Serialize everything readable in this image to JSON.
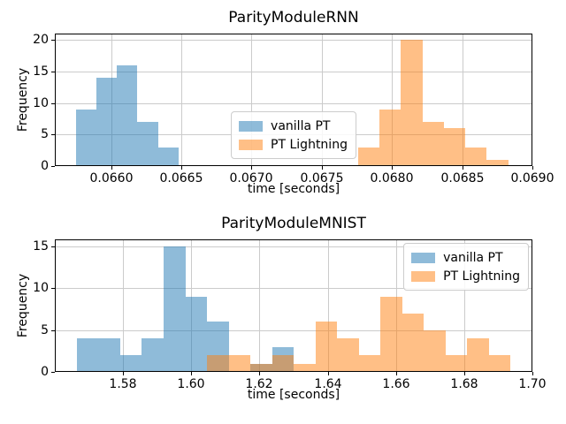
{
  "figure": {
    "background": "#ffffff",
    "grid_color": "#cbcbcb",
    "series_colors": {
      "vanilla_pt": "rgba(31,119,180,0.5)",
      "pt_lightning": "rgba(255,127,14,0.5)"
    }
  },
  "chart_data": [
    {
      "type": "histogram",
      "title": "ParityModuleRNN",
      "xlabel": "time [seconds]",
      "ylabel": "Frequency",
      "xlim": [
        0.0656,
        0.069
      ],
      "ylim": [
        0,
        21
      ],
      "grid": true,
      "xticks": [
        0.066,
        0.0665,
        0.067,
        0.0675,
        0.068,
        0.0685,
        0.069
      ],
      "xtick_labels": [
        "0.0660",
        "0.0665",
        "0.0670",
        "0.0675",
        "0.0680",
        "0.0685",
        "0.0690"
      ],
      "yticks": [
        0,
        5,
        10,
        15,
        20
      ],
      "legend_loc": "lower center",
      "series": [
        {
          "name": "vanilla PT",
          "color": "rgba(31,119,180,0.5)",
          "bin_start": 0.06575,
          "bin_width": 0.000146,
          "counts": [
            9,
            14,
            16,
            7,
            3
          ]
        },
        {
          "name": "PT Lightning",
          "color": "rgba(255,127,14,0.5)",
          "bin_start": 0.06776,
          "bin_width": 0.0001525,
          "counts": [
            3,
            9,
            20,
            7,
            6,
            3,
            1
          ]
        }
      ]
    },
    {
      "type": "histogram",
      "title": "ParityModuleMNIST",
      "xlabel": "time [seconds]",
      "ylabel": "Frequency",
      "xlim": [
        1.56,
        1.7
      ],
      "ylim": [
        0,
        15.8
      ],
      "grid": true,
      "xticks": [
        1.58,
        1.6,
        1.62,
        1.64,
        1.66,
        1.68,
        1.7
      ],
      "xtick_labels": [
        "1.58",
        "1.60",
        "1.62",
        "1.64",
        "1.66",
        "1.68",
        "1.70"
      ],
      "yticks": [
        0,
        5,
        10,
        15
      ],
      "legend_loc": "upper right",
      "series": [
        {
          "name": "vanilla PT",
          "color": "rgba(31,119,180,0.5)",
          "bin_start": 1.5664,
          "bin_width": 0.00637,
          "counts": [
            4,
            4,
            2,
            4,
            15,
            9,
            6,
            0,
            1,
            3
          ]
        },
        {
          "name": "PT Lightning",
          "color": "rgba(255,127,14,0.5)",
          "bin_start": 1.6046,
          "bin_width": 0.00636,
          "counts": [
            2,
            2,
            1,
            2,
            1,
            6,
            4,
            2,
            9,
            7,
            5,
            2,
            4,
            2
          ]
        }
      ]
    }
  ]
}
